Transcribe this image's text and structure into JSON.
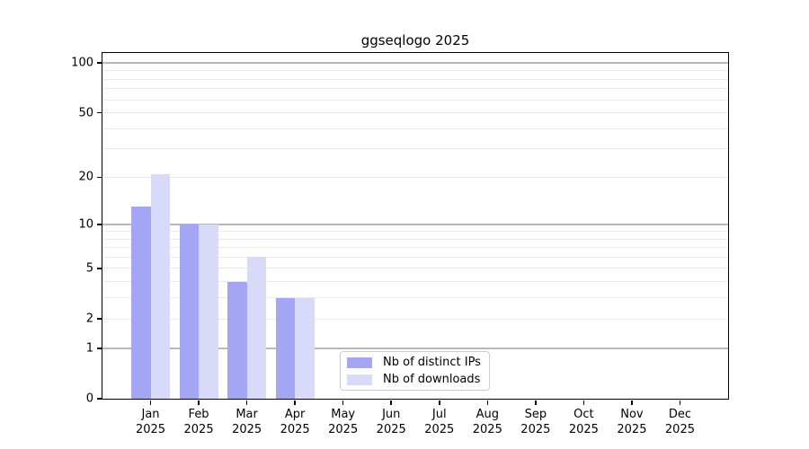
{
  "chart_data": {
    "type": "bar",
    "title": "ggseqlogo 2025",
    "yscale": "log10(1+v)",
    "ylim": [
      0,
      115
    ],
    "y_ticks": [
      0,
      1,
      2,
      5,
      10,
      20,
      50,
      100
    ],
    "gridlines": {
      "major": [
        1,
        10,
        100
      ],
      "minor": [
        2,
        3,
        4,
        5,
        6,
        7,
        8,
        9,
        20,
        30,
        40,
        50,
        60,
        70,
        80,
        90
      ]
    },
    "x": {
      "categories": [
        "Jan",
        "Feb",
        "Mar",
        "Apr",
        "May",
        "Jun",
        "Jul",
        "Aug",
        "Sep",
        "Oct",
        "Nov",
        "Dec"
      ],
      "year": "2025"
    },
    "series": [
      {
        "name": "Nb of distinct IPs",
        "color": "#a4a5f3",
        "values": [
          13,
          10,
          4,
          3,
          0,
          0,
          0,
          0,
          0,
          0,
          0,
          0
        ]
      },
      {
        "name": "Nb of downloads",
        "color": "#d9daf9",
        "values": [
          21,
          10,
          6,
          3,
          0,
          0,
          0,
          0,
          0,
          0,
          0,
          0
        ]
      }
    ],
    "legend_position": "lower center, inside plot",
    "grid": true
  },
  "colors": {
    "grid_major": "#b8b8b8",
    "grid_minor": "#e9e9e9",
    "axis": "#000000",
    "background": "#ffffff"
  }
}
